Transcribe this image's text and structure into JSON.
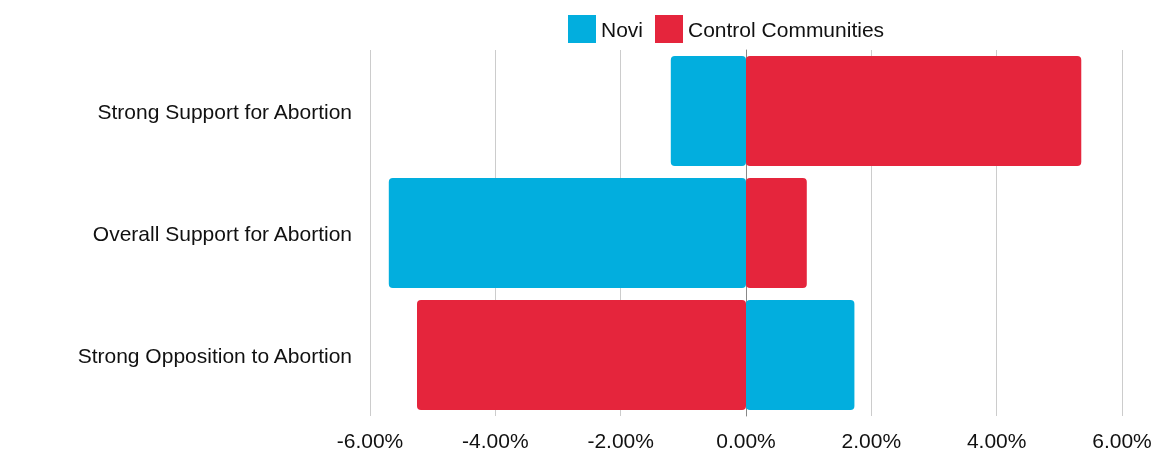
{
  "chart_data": {
    "type": "bar",
    "orientation": "horizontal",
    "stacked": true,
    "categories": [
      "Strong Support for Abortion",
      "Overall Support for Abortion",
      "Strong Opposition to Abortion"
    ],
    "series": [
      {
        "name": "Novi",
        "color": "#02aede",
        "values": [
          -1.2,
          -5.7,
          1.73
        ]
      },
      {
        "name": "Control Communities",
        "color": "#e5253c",
        "values": [
          5.35,
          0.97,
          -5.25
        ]
      }
    ],
    "xlim": [
      -6,
      6
    ],
    "xticks": [
      {
        "value": -6,
        "label": "-6.00%"
      },
      {
        "value": -4,
        "label": "-4.00%"
      },
      {
        "value": -2,
        "label": "-2.00%"
      },
      {
        "value": 0,
        "label": "0.00%"
      },
      {
        "value": 2,
        "label": "2.00%"
      },
      {
        "value": 4,
        "label": "4.00%"
      },
      {
        "value": 6,
        "label": "6.00%"
      }
    ],
    "grid": "x",
    "legend": "top"
  }
}
